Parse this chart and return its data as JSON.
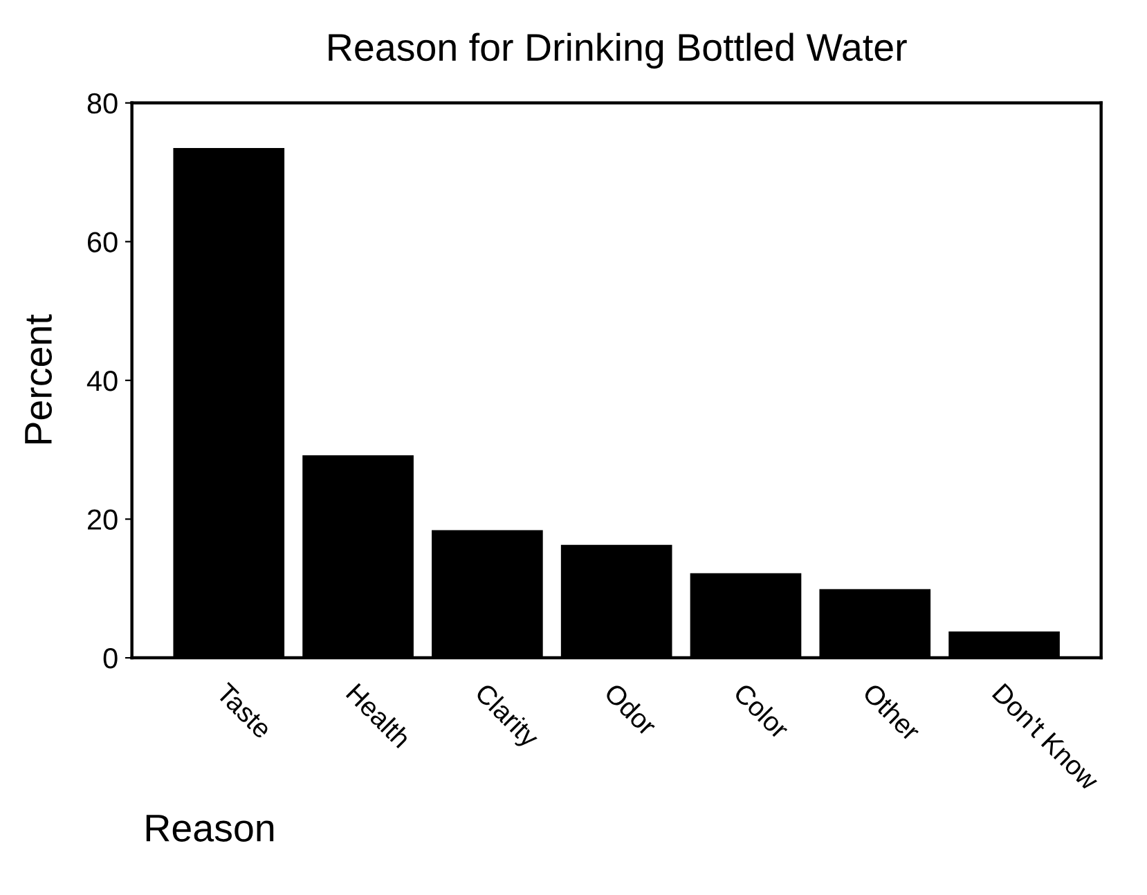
{
  "chart_data": {
    "type": "bar",
    "title": "Reason for Drinking Bottled Water",
    "xlabel": "Reason",
    "ylabel": "Percent",
    "categories": [
      "Taste",
      "Health",
      "Clarity",
      "Odor",
      "Color",
      "Other",
      "Don't Know"
    ],
    "values": [
      73.5,
      29.2,
      18.4,
      16.3,
      12.2,
      9.9,
      3.8
    ],
    "color": "#000000",
    "ylim": [
      0,
      80
    ],
    "yticks": [
      0,
      20,
      40,
      60,
      80
    ],
    "grid": false,
    "legend": false
  }
}
